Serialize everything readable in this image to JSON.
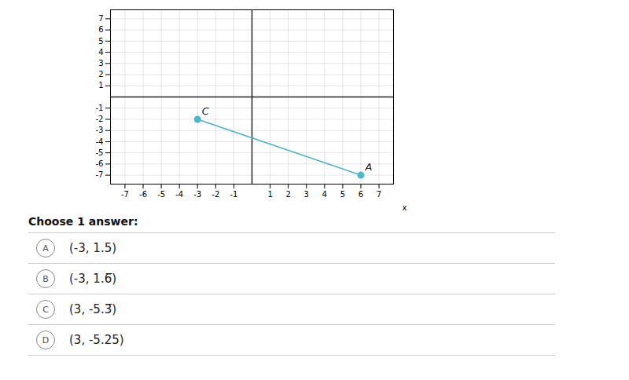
{
  "chart_data": {
    "type": "line",
    "x": [
      -3,
      6
    ],
    "values": [
      -2,
      -7
    ],
    "point_labels": [
      "C",
      "A"
    ],
    "color": "#4ab8c8",
    "marker": "circle",
    "xlim": [
      -7.8,
      7.8
    ],
    "ylim": [
      -7.8,
      7.8
    ],
    "xticks": [
      -7,
      -6,
      -5,
      -4,
      -3,
      -2,
      -1,
      1,
      2,
      3,
      4,
      5,
      6,
      7
    ],
    "yticks": [
      -7,
      -6,
      -5,
      -4,
      -3,
      -2,
      -1,
      1,
      2,
      3,
      4,
      5,
      6,
      7
    ],
    "xlabel": "x",
    "grid": true,
    "prompt": "Choose 1 answer:",
    "choices": [
      {
        "label": "A",
        "text": "(-3, 1.5)"
      },
      {
        "label": "B",
        "text": "(-3, 1.6̅)"
      },
      {
        "label": "C",
        "text": "(3, -5.3̅)"
      },
      {
        "label": "D",
        "text": "(3, -5.25)"
      }
    ]
  }
}
